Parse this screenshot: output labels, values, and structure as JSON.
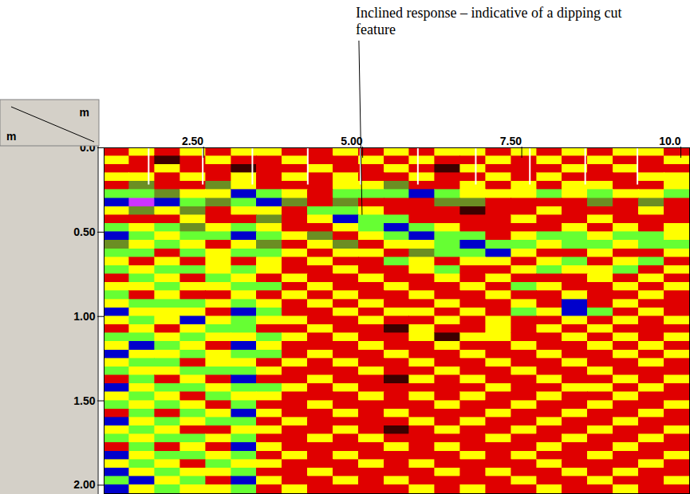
{
  "chart_data": {
    "type": "heatmap",
    "annotation": {
      "text": "Inclined response – indicative of a dipping cut feature",
      "x": 4.96,
      "y": 0.4
    },
    "x_label": "m",
    "y_label": "m",
    "xlim": [
      0.9,
      10.1
    ],
    "ylim": [
      0,
      2.05
    ],
    "xticks": [
      {
        "value": 2.5,
        "label": "2.50"
      },
      {
        "value": 5,
        "label": "5.00"
      },
      {
        "value": 7.5,
        "label": "7.50"
      },
      {
        "value": 10,
        "label": "10.0"
      }
    ],
    "yticks": [
      {
        "value": 0,
        "label": "0.0"
      },
      {
        "value": 0.5,
        "label": "0.50"
      },
      {
        "value": 1,
        "label": "1.00"
      },
      {
        "value": 1.5,
        "label": "1.50"
      },
      {
        "value": 2,
        "label": "2.00"
      }
    ],
    "colors": [
      "#3c0000",
      "#e00000",
      "#6b8e23",
      "#ffff00",
      "#66ff33",
      "#0000cc",
      "#cc33ff"
    ],
    "x_edges": [
      0.9,
      1.3,
      1.7,
      2.1,
      2.5,
      2.9,
      3.3,
      3.7,
      4.1,
      4.5,
      4.9,
      5.3,
      5.7,
      6.1,
      6.5,
      6.9,
      7.3,
      7.7,
      8.1,
      8.5,
      8.9,
      9.3,
      9.7,
      10.1
    ],
    "y_edges": [
      0,
      0.05,
      0.1,
      0.15,
      0.2,
      0.25,
      0.3,
      0.35,
      0.4,
      0.45,
      0.5,
      0.55,
      0.6,
      0.65,
      0.7,
      0.75,
      0.8,
      0.85,
      0.9,
      0.95,
      1.0,
      1.05,
      1.1,
      1.15,
      1.2,
      1.25,
      1.3,
      1.35,
      1.4,
      1.45,
      1.5,
      1.55,
      1.6,
      1.65,
      1.7,
      1.75,
      1.8,
      1.85,
      1.9,
      1.95,
      2.0,
      2.05
    ],
    "cells": [
      [
        1,
        3,
        1,
        3,
        1,
        3,
        3,
        1,
        1,
        3,
        1,
        3,
        1,
        3,
        3,
        1,
        3,
        1,
        3,
        1,
        3,
        3,
        1
      ],
      [
        3,
        1,
        0,
        1,
        3,
        1,
        1,
        3,
        1,
        1,
        3,
        1,
        3,
        1,
        1,
        3,
        1,
        3,
        1,
        3,
        1,
        1,
        3
      ],
      [
        1,
        1,
        3,
        1,
        1,
        0,
        1,
        1,
        3,
        1,
        1,
        3,
        1,
        0,
        3,
        1,
        1,
        1,
        3,
        1,
        3,
        1,
        1
      ],
      [
        3,
        3,
        1,
        3,
        1,
        3,
        1,
        3,
        1,
        3,
        1,
        1,
        3,
        1,
        1,
        3,
        1,
        3,
        1,
        1,
        1,
        3,
        3
      ],
      [
        1,
        2,
        1,
        1,
        2,
        3,
        1,
        1,
        1,
        3,
        3,
        2,
        1,
        1,
        3,
        1,
        3,
        1,
        3,
        3,
        1,
        1,
        3
      ],
      [
        4,
        4,
        2,
        3,
        3,
        5,
        4,
        3,
        1,
        4,
        4,
        4,
        5,
        4,
        3,
        3,
        3,
        4,
        3,
        4,
        3,
        3,
        4
      ],
      [
        5,
        6,
        5,
        4,
        2,
        4,
        5,
        2,
        1,
        2,
        1,
        1,
        1,
        2,
        2,
        1,
        1,
        1,
        1,
        2,
        1,
        2,
        1
      ],
      [
        3,
        2,
        3,
        2,
        1,
        3,
        3,
        1,
        4,
        4,
        3,
        1,
        1,
        1,
        0,
        1,
        1,
        3,
        1,
        1,
        1,
        3,
        1
      ],
      [
        1,
        1,
        1,
        3,
        1,
        1,
        2,
        1,
        3,
        5,
        4,
        4,
        1,
        1,
        1,
        1,
        3,
        1,
        1,
        3,
        1,
        1,
        1
      ],
      [
        4,
        3,
        4,
        2,
        3,
        4,
        3,
        1,
        1,
        3,
        4,
        5,
        4,
        3,
        1,
        1,
        1,
        1,
        3,
        1,
        3,
        1,
        3
      ],
      [
        5,
        4,
        3,
        4,
        4,
        5,
        4,
        3,
        2,
        1,
        3,
        4,
        5,
        4,
        4,
        1,
        3,
        4,
        4,
        3,
        4,
        4,
        3
      ],
      [
        2,
        3,
        4,
        3,
        1,
        3,
        2,
        1,
        3,
        2,
        1,
        3,
        3,
        4,
        5,
        4,
        4,
        3,
        4,
        4,
        3,
        4,
        4
      ],
      [
        4,
        4,
        1,
        4,
        3,
        4,
        4,
        3,
        1,
        3,
        3,
        1,
        2,
        4,
        4,
        5,
        3,
        1,
        1,
        3,
        1,
        1,
        3
      ],
      [
        3,
        1,
        3,
        1,
        3,
        1,
        3,
        1,
        3,
        1,
        1,
        4,
        3,
        1,
        3,
        3,
        1,
        3,
        4,
        1,
        3,
        4,
        1
      ],
      [
        4,
        3,
        4,
        4,
        3,
        4,
        3,
        1,
        1,
        3,
        1,
        1,
        3,
        4,
        1,
        1,
        3,
        4,
        3,
        3,
        4,
        1,
        3
      ],
      [
        1,
        4,
        3,
        1,
        4,
        3,
        1,
        3,
        1,
        1,
        3,
        1,
        1,
        3,
        1,
        3,
        1,
        1,
        1,
        3,
        1,
        3,
        1
      ],
      [
        3,
        3,
        4,
        3,
        3,
        4,
        4,
        1,
        3,
        1,
        1,
        3,
        1,
        1,
        3,
        1,
        4,
        3,
        1,
        1,
        3,
        1,
        3
      ],
      [
        4,
        1,
        3,
        1,
        1,
        3,
        1,
        3,
        1,
        3,
        1,
        1,
        3,
        1,
        1,
        3,
        1,
        1,
        3,
        1,
        1,
        3,
        1
      ],
      [
        3,
        4,
        4,
        4,
        3,
        4,
        3,
        1,
        3,
        1,
        3,
        1,
        1,
        3,
        1,
        1,
        3,
        1,
        5,
        1,
        3,
        1,
        1
      ],
      [
        5,
        3,
        3,
        3,
        1,
        5,
        4,
        1,
        1,
        3,
        1,
        3,
        3,
        1,
        3,
        1,
        4,
        3,
        5,
        4,
        1,
        3,
        1
      ],
      [
        3,
        4,
        3,
        5,
        3,
        4,
        3,
        3,
        1,
        1,
        3,
        1,
        1,
        3,
        1,
        3,
        1,
        1,
        3,
        1,
        3,
        1,
        3
      ],
      [
        1,
        3,
        1,
        3,
        4,
        4,
        1,
        1,
        3,
        1,
        1,
        0,
        3,
        1,
        1,
        3,
        1,
        3,
        1,
        3,
        1,
        1,
        1
      ],
      [
        4,
        4,
        3,
        4,
        3,
        3,
        4,
        3,
        1,
        3,
        1,
        1,
        3,
        0,
        3,
        3,
        1,
        1,
        3,
        1,
        3,
        1,
        3
      ],
      [
        3,
        5,
        4,
        3,
        1,
        5,
        3,
        1,
        1,
        1,
        3,
        1,
        1,
        3,
        1,
        1,
        3,
        1,
        1,
        3,
        1,
        3,
        1
      ],
      [
        5,
        3,
        3,
        4,
        3,
        4,
        4,
        1,
        3,
        1,
        1,
        3,
        1,
        1,
        3,
        1,
        1,
        3,
        1,
        1,
        3,
        1,
        3
      ],
      [
        3,
        4,
        4,
        1,
        3,
        3,
        1,
        3,
        1,
        3,
        1,
        1,
        3,
        1,
        1,
        3,
        1,
        1,
        3,
        1,
        1,
        3,
        1
      ],
      [
        4,
        3,
        3,
        4,
        4,
        4,
        3,
        1,
        1,
        1,
        3,
        1,
        1,
        3,
        1,
        1,
        3,
        1,
        1,
        3,
        1,
        1,
        1
      ],
      [
        1,
        4,
        1,
        3,
        1,
        5,
        1,
        1,
        3,
        1,
        1,
        0,
        3,
        1,
        3,
        1,
        1,
        3,
        1,
        1,
        3,
        1,
        3
      ],
      [
        5,
        3,
        4,
        4,
        3,
        4,
        4,
        3,
        1,
        3,
        1,
        1,
        1,
        1,
        1,
        3,
        1,
        1,
        3,
        3,
        1,
        3,
        1
      ],
      [
        3,
        4,
        3,
        1,
        4,
        3,
        3,
        1,
        1,
        1,
        3,
        1,
        3,
        1,
        3,
        1,
        1,
        3,
        1,
        1,
        3,
        1,
        1
      ],
      [
        4,
        3,
        4,
        3,
        1,
        4,
        1,
        1,
        3,
        1,
        1,
        1,
        1,
        3,
        1,
        1,
        3,
        1,
        1,
        3,
        1,
        1,
        3
      ],
      [
        1,
        4,
        1,
        4,
        3,
        5,
        3,
        1,
        1,
        3,
        1,
        3,
        1,
        1,
        1,
        3,
        1,
        1,
        3,
        1,
        1,
        3,
        1
      ],
      [
        5,
        3,
        4,
        3,
        4,
        4,
        1,
        3,
        1,
        1,
        1,
        1,
        3,
        1,
        3,
        1,
        1,
        3,
        1,
        1,
        3,
        1,
        1
      ],
      [
        3,
        4,
        3,
        1,
        1,
        3,
        3,
        1,
        1,
        3,
        1,
        0,
        1,
        3,
        1,
        1,
        3,
        1,
        1,
        3,
        1,
        1,
        3
      ],
      [
        4,
        3,
        4,
        4,
        3,
        4,
        1,
        1,
        3,
        1,
        3,
        1,
        1,
        1,
        1,
        3,
        1,
        1,
        3,
        1,
        1,
        3,
        1
      ],
      [
        1,
        4,
        1,
        3,
        1,
        5,
        3,
        1,
        1,
        1,
        1,
        3,
        1,
        3,
        1,
        1,
        1,
        3,
        1,
        1,
        3,
        1,
        1
      ],
      [
        5,
        3,
        4,
        4,
        3,
        4,
        1,
        3,
        1,
        3,
        1,
        1,
        1,
        1,
        3,
        1,
        3,
        1,
        1,
        3,
        1,
        1,
        3
      ],
      [
        3,
        4,
        3,
        1,
        4,
        3,
        3,
        1,
        1,
        1,
        3,
        1,
        3,
        1,
        1,
        1,
        1,
        3,
        1,
        1,
        1,
        3,
        1
      ],
      [
        5,
        3,
        4,
        3,
        3,
        4,
        1,
        1,
        3,
        1,
        1,
        1,
        1,
        3,
        1,
        3,
        1,
        1,
        3,
        1,
        3,
        1,
        1
      ],
      [
        4,
        5,
        3,
        4,
        1,
        5,
        3,
        1,
        1,
        3,
        1,
        3,
        1,
        1,
        1,
        1,
        3,
        1,
        1,
        3,
        1,
        1,
        3
      ],
      [
        5,
        3,
        4,
        3,
        3,
        4,
        1,
        3,
        1,
        1,
        1,
        1,
        3,
        1,
        3,
        1,
        1,
        3,
        1,
        1,
        3,
        1,
        1
      ]
    ],
    "markers": {
      "x": [
        1.6,
        2.45,
        3.23,
        4.1,
        4.93,
        5.83,
        6.74,
        7.59,
        8.46,
        9.28
      ],
      "depth": [
        0,
        0.22
      ]
    }
  }
}
